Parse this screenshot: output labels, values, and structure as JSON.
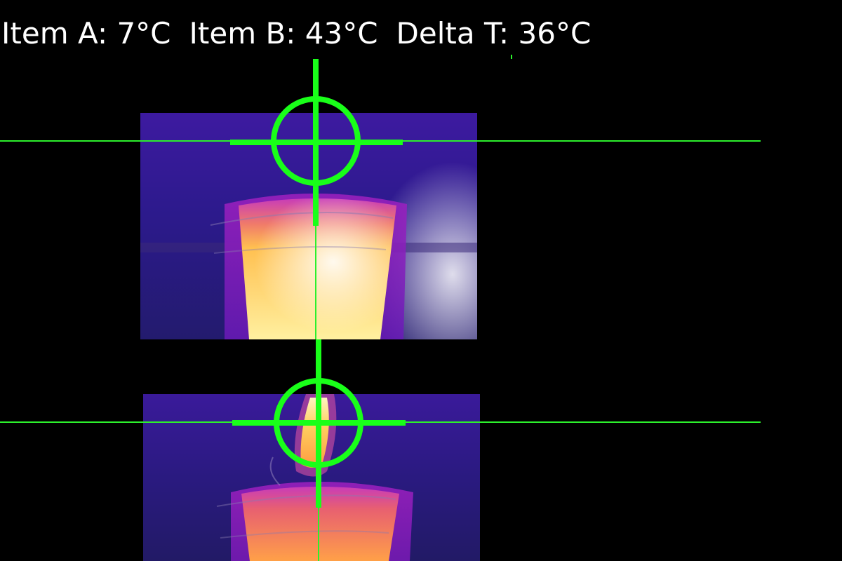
{
  "readout": {
    "item_a": "Item A: 7°C",
    "item_b": "Item B: 43°C",
    "delta_t": "Delta T: 36°C"
  },
  "colors": {
    "overlay_green": "#19ff19",
    "guide_line_green": "#2cf02c"
  },
  "icons": {
    "crosshair": "crosshair-icon"
  }
}
